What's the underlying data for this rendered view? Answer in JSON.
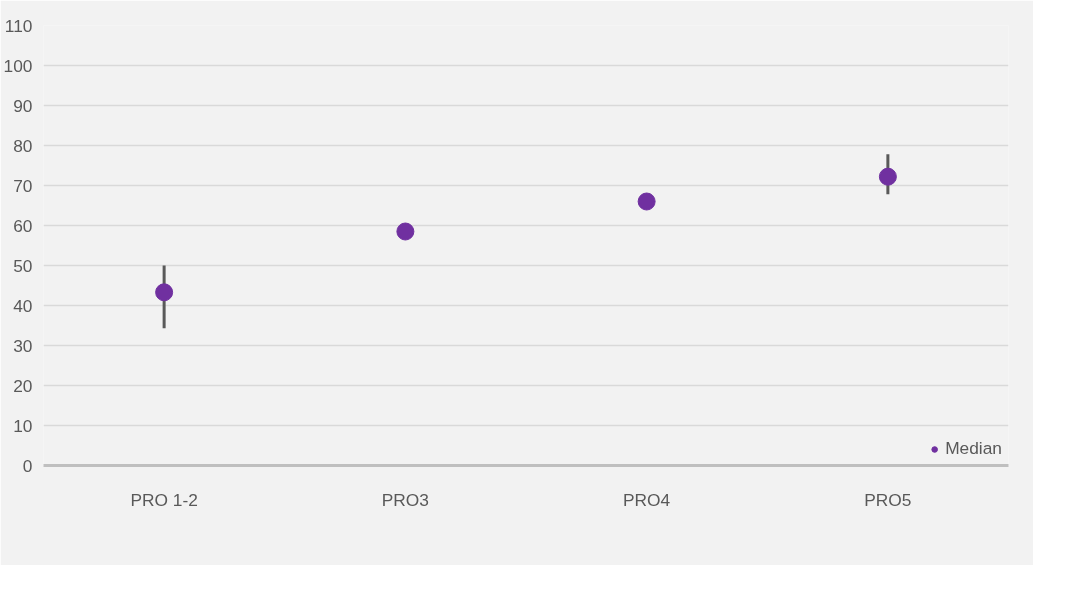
{
  "chart_data": {
    "type": "scatter",
    "categories": [
      "PRO 1-2",
      "PRO3",
      "PRO4",
      "PRO5"
    ],
    "series": [
      {
        "name": "Median",
        "color": "#7030a0",
        "values": [
          43.3,
          58.5,
          66,
          72.2
        ],
        "errors": [
          [
            34.3,
            50
          ],
          null,
          null,
          [
            67.8,
            77.8
          ]
        ]
      }
    ],
    "ylim": [
      0,
      110
    ],
    "yticks": [
      0,
      10,
      20,
      30,
      40,
      50,
      60,
      70,
      80,
      90,
      100,
      110
    ],
    "grid": "y",
    "legend": "bottom right",
    "marker": "circle"
  }
}
